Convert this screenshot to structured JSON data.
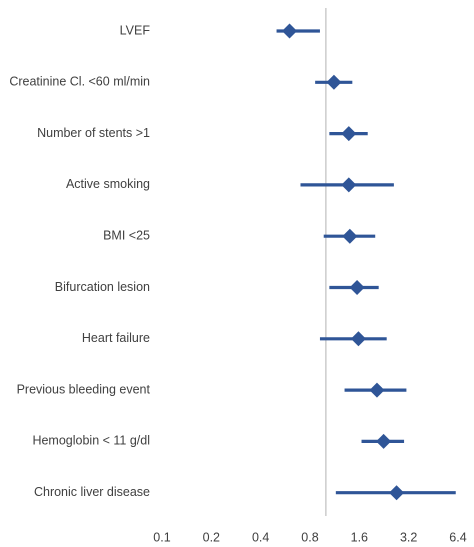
{
  "chart_data": {
    "type": "forest",
    "title": "",
    "xlabel": "",
    "ylabel": "",
    "x_scale": "log2",
    "xlim": [
      0.1,
      6.4
    ],
    "x_ticks": [
      "0.1",
      "0.2",
      "0.4",
      "0.8",
      "1.6",
      "3.2",
      "6.4"
    ],
    "reference_line": 1,
    "grid": false,
    "marker": "diamond",
    "color": "#2f5597",
    "reference_line_color": "#bfbfbf",
    "rows": [
      {
        "label": "LVEF",
        "estimate": 0.6,
        "lower": 0.5,
        "upper": 0.92
      },
      {
        "label": "Creatinine Cl. <60 ml/min",
        "estimate": 1.12,
        "lower": 0.86,
        "upper": 1.45
      },
      {
        "label": "Number of stents >1",
        "estimate": 1.38,
        "lower": 1.05,
        "upper": 1.8
      },
      {
        "label": "Active smoking",
        "estimate": 1.38,
        "lower": 0.7,
        "upper": 2.6
      },
      {
        "label": "BMI <25",
        "estimate": 1.4,
        "lower": 0.97,
        "upper": 2.0
      },
      {
        "label": "Bifurcation lesion",
        "estimate": 1.55,
        "lower": 1.05,
        "upper": 2.1
      },
      {
        "label": "Heart failure",
        "estimate": 1.58,
        "lower": 0.92,
        "upper": 2.35
      },
      {
        "label": "Previous bleeding event",
        "estimate": 2.05,
        "lower": 1.3,
        "upper": 3.1
      },
      {
        "label": "Hemoglobin < 11 g/dl",
        "estimate": 2.25,
        "lower": 1.65,
        "upper": 3.0
      },
      {
        "label": "Chronic liver disease",
        "estimate": 2.7,
        "lower": 1.15,
        "upper": 6.2
      }
    ]
  }
}
